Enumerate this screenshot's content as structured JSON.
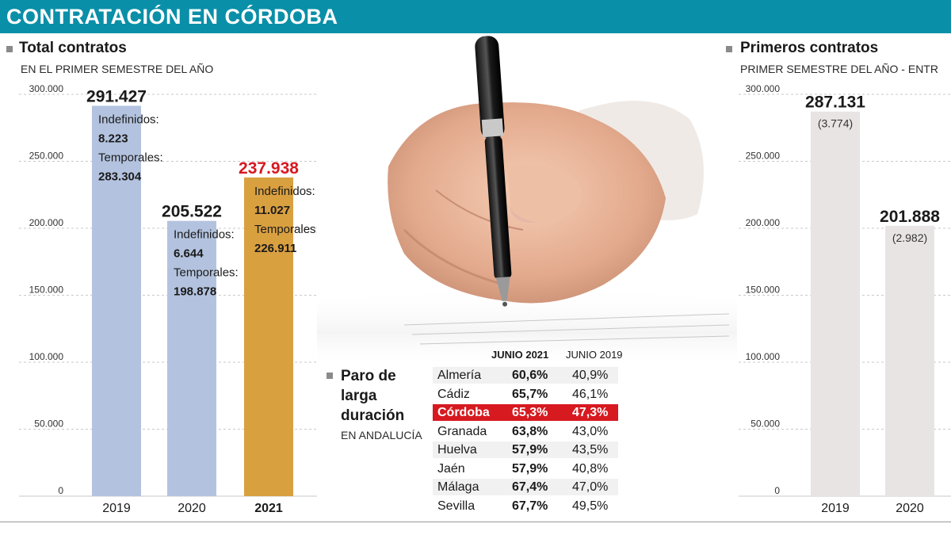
{
  "header": {
    "title": "CONTRATACIÓN EN CÓRDOBA"
  },
  "colors": {
    "banner": "#0a8fa8",
    "bar_2019": "#b3c3df",
    "bar_2020": "#b3c3df",
    "bar_2021": "#d9a040",
    "highlight": "#d71920",
    "primeros_bar": "#e9e4e4"
  },
  "left_section": {
    "title": "Total contratos",
    "subtitle": "EN EL PRIMER SEMESTRE DEL AÑO"
  },
  "right_section": {
    "title": "Primeros contratos",
    "subtitle": "PRIMER SEMESTRE DEL AÑO - ENTR"
  },
  "paro": {
    "title_lines": [
      "Paro de",
      "larga",
      "duración"
    ],
    "subtitle": "EN ANDALUCÍA",
    "col_2021": "JUNIO 2021",
    "col_2019": "JUNIO 2019",
    "rows": [
      {
        "province": "Almería",
        "v2021": "60,6%",
        "v2019": "40,9%"
      },
      {
        "province": "Cádiz",
        "v2021": "65,7%",
        "v2019": "46,1%"
      },
      {
        "province": "Córdoba",
        "v2021": "65,3%",
        "v2019": "47,3%"
      },
      {
        "province": "Granada",
        "v2021": "63,8%",
        "v2019": "43,0%"
      },
      {
        "province": "Huelva",
        "v2021": "57,9%",
        "v2019": "43,5%"
      },
      {
        "province": "Jaén",
        "v2021": "57,9%",
        "v2019": "40,8%"
      },
      {
        "province": "Málaga",
        "v2021": "67,4%",
        "v2019": "47,0%"
      },
      {
        "province": "Sevilla",
        "v2021": "67,7%",
        "v2019": "49,5%"
      }
    ],
    "highlighted_province": "Córdoba"
  },
  "chart_data": [
    {
      "type": "bar",
      "title": "Total contratos",
      "subtitle": "EN EL PRIMER SEMESTRE DEL AÑO",
      "categories": [
        "2019",
        "2020",
        "2021"
      ],
      "values": [
        291427,
        205522,
        237938
      ],
      "value_labels": [
        "291.427",
        "205.522",
        "237.938"
      ],
      "ylim": [
        0,
        300000
      ],
      "yticks": [
        0,
        50000,
        100000,
        150000,
        200000,
        250000,
        300000
      ],
      "ytick_labels": [
        "0",
        "50.000",
        "100.000",
        "150.000",
        "200.000",
        "250.000",
        "300.000"
      ],
      "annotations": [
        {
          "indef_label": "Indefinidos:",
          "indef_value": "8.223",
          "temp_label": "Temporales:",
          "temp_value": "283.304"
        },
        {
          "indef_label": "Indefinidos:",
          "indef_value": "6.644",
          "temp_label": "Temporales:",
          "temp_value": "198.878"
        },
        {
          "indef_label": "Indefinidos:",
          "indef_value": "11.027",
          "temp_label": "Temporales:",
          "temp_value": "226.911"
        }
      ]
    },
    {
      "type": "bar",
      "title": "Primeros contratos",
      "subtitle": "PRIMER SEMESTRE DEL AÑO - ENTR",
      "categories": [
        "2019",
        "2020"
      ],
      "values": [
        287131,
        201888
      ],
      "value_labels": [
        "287.131",
        "201.888"
      ],
      "secondary_labels": [
        "(3.774)",
        "(2.982)"
      ],
      "ylim": [
        0,
        300000
      ],
      "yticks": [
        0,
        50000,
        100000,
        150000,
        200000,
        250000,
        300000
      ],
      "ytick_labels": [
        "0",
        "50.000",
        "100.000",
        "150.000",
        "200.000",
        "250.000",
        "300.000"
      ]
    }
  ]
}
